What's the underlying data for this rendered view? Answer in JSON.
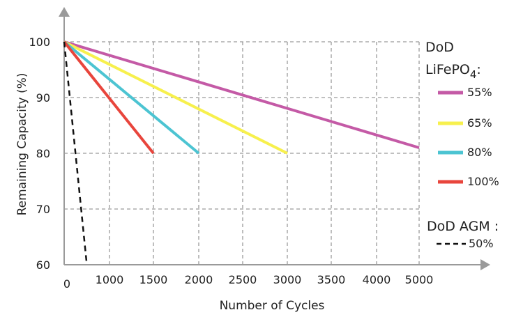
{
  "chart_data": {
    "type": "line",
    "title": "",
    "xlabel": "Number of Cycles",
    "ylabel": "Remaining Capacity (%)",
    "x_ticks": [
      0,
      1000,
      1500,
      2000,
      2500,
      3000,
      3500,
      4000,
      5000
    ],
    "y_ticks": [
      60,
      70,
      80,
      90,
      100
    ],
    "ylim": [
      60,
      100
    ],
    "grid": true,
    "legend_placement": "right",
    "legend_groups": [
      {
        "title": "DoD",
        "title_line2": "LiFePO",
        "title_sub": "4",
        "title_suffix": ":"
      },
      {
        "title": "DoD AGM :"
      }
    ],
    "series": [
      {
        "name": "55%",
        "group": "DoD LiFePO4",
        "color": "#c45aa6",
        "style": "solid",
        "points": [
          [
            0,
            100
          ],
          [
            5000,
            81
          ]
        ]
      },
      {
        "name": "65%",
        "group": "DoD LiFePO4",
        "color": "#f7f04d",
        "style": "solid",
        "points": [
          [
            0,
            100
          ],
          [
            3000,
            80
          ]
        ]
      },
      {
        "name": "80%",
        "group": "DoD LiFePO4",
        "color": "#4cc4d2",
        "style": "solid",
        "points": [
          [
            0,
            100
          ],
          [
            2000,
            80
          ]
        ]
      },
      {
        "name": "100%",
        "group": "DoD LiFePO4",
        "color": "#e8453c",
        "style": "solid",
        "points": [
          [
            0,
            100
          ],
          [
            1500,
            80
          ]
        ]
      },
      {
        "name": "50%",
        "group": "DoD AGM",
        "color": "#111111",
        "style": "dashed",
        "points": [
          [
            0,
            100
          ],
          [
            500,
            60
          ]
        ]
      }
    ]
  }
}
